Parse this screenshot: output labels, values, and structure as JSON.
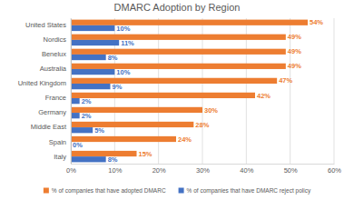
{
  "chart_data": {
    "type": "bar",
    "title": "DMARC Adoption by Region",
    "orientation": "horizontal",
    "categories": [
      "United States",
      "Nordics",
      "Benelux",
      "Australia",
      "United Kingdom",
      "France",
      "Germany",
      "Middle East",
      "Spain",
      "Italy"
    ],
    "series": [
      {
        "name": "% of companies that have adopted DMARC",
        "color": "#ed7d31",
        "values": [
          54,
          49,
          49,
          49,
          47,
          42,
          30,
          28,
          24,
          15
        ],
        "value_labels": [
          "54%",
          "49%",
          "49%",
          "49%",
          "47%",
          "42%",
          "30%",
          "28%",
          "24%",
          "15%"
        ]
      },
      {
        "name": "% of companies that have DMARC reject policy",
        "color": "#4472c4",
        "values": [
          10,
          11,
          8,
          10,
          9,
          2,
          2,
          5,
          0,
          8
        ],
        "value_labels": [
          "10%",
          "11%",
          "8%",
          "10%",
          "9%",
          "2%",
          "2%",
          "5%",
          "0%",
          "8%"
        ]
      }
    ],
    "xlim": [
      0,
      60
    ],
    "xticks": [
      {
        "value": 0,
        "label": "0%"
      },
      {
        "value": 10,
        "label": "10%"
      },
      {
        "value": 20,
        "label": "20%"
      },
      {
        "value": 30,
        "label": "30%"
      },
      {
        "value": 40,
        "label": "40%"
      },
      {
        "value": 50,
        "label": "50%"
      },
      {
        "value": 60,
        "label": "60%"
      }
    ],
    "grid": true,
    "data_labels": true,
    "legend": "bottom"
  }
}
